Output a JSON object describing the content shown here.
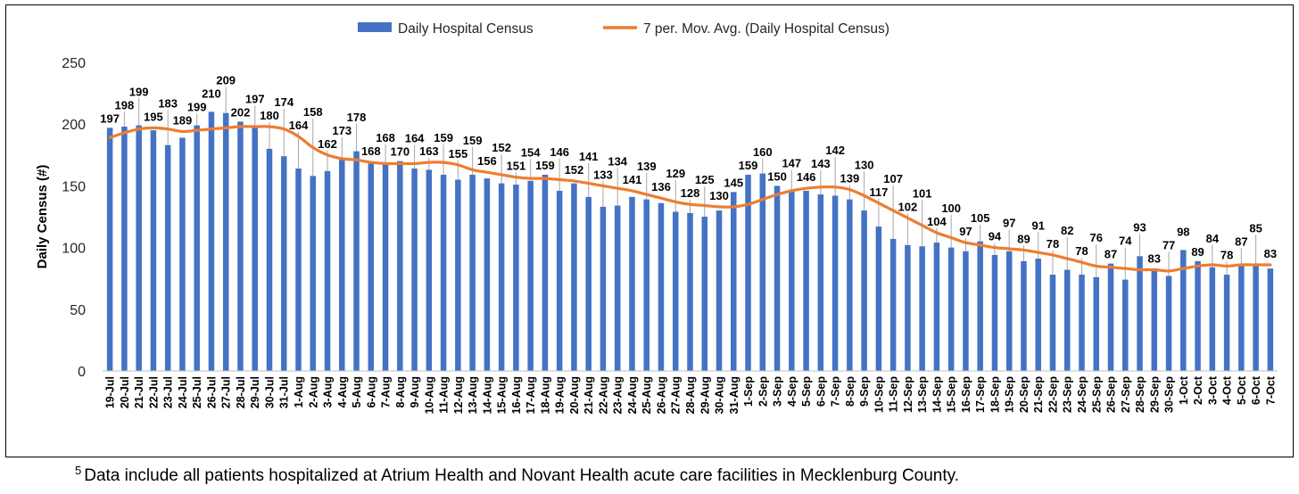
{
  "chart_data": {
    "type": "bar",
    "title": "",
    "xlabel": "",
    "ylabel": "Daily Census (#)",
    "ylim": [
      0,
      250
    ],
    "yticks": [
      0,
      50,
      100,
      150,
      200,
      250
    ],
    "grid": false,
    "legend_position": "top-center",
    "colors": {
      "bar": "#4472C4",
      "line": "#ED7D31"
    },
    "categories": [
      "19-Jul",
      "20-Jul",
      "21-Jul",
      "22-Jul",
      "23-Jul",
      "24-Jul",
      "25-Jul",
      "26-Jul",
      "27-Jul",
      "28-Jul",
      "29-Jul",
      "30-Jul",
      "31-Jul",
      "1-Aug",
      "2-Aug",
      "3-Aug",
      "4-Aug",
      "5-Aug",
      "6-Aug",
      "7-Aug",
      "8-Aug",
      "9-Aug",
      "10-Aug",
      "11-Aug",
      "12-Aug",
      "13-Aug",
      "14-Aug",
      "15-Aug",
      "16-Aug",
      "17-Aug",
      "18-Aug",
      "19-Aug",
      "20-Aug",
      "21-Aug",
      "22-Aug",
      "23-Aug",
      "24-Aug",
      "25-Aug",
      "26-Aug",
      "27-Aug",
      "28-Aug",
      "29-Aug",
      "30-Aug",
      "31-Aug",
      "1-Sep",
      "2-Sep",
      "3-Sep",
      "4-Sep",
      "5-Sep",
      "6-Sep",
      "7-Sep",
      "8-Sep",
      "9-Sep",
      "10-Sep",
      "11-Sep",
      "12-Sep",
      "13-Sep",
      "14-Sep",
      "15-Sep",
      "16-Sep",
      "17-Sep",
      "18-Sep",
      "19-Sep",
      "20-Sep",
      "21-Sep",
      "22-Sep",
      "23-Sep",
      "24-Sep",
      "25-Sep",
      "26-Sep",
      "27-Sep",
      "28-Sep",
      "29-Sep",
      "30-Sep",
      "1-Oct",
      "2-Oct",
      "3-Oct",
      "4-Oct",
      "5-Oct",
      "6-Oct",
      "7-Oct"
    ],
    "series": [
      {
        "name": "Daily Hospital Census",
        "type": "bar",
        "values": [
          197,
          198,
          199,
          195,
          183,
          189,
          199,
          210,
          209,
          202,
          197,
          180,
          174,
          164,
          158,
          162,
          173,
          178,
          168,
          168,
          170,
          164,
          163,
          159,
          155,
          159,
          156,
          152,
          151,
          154,
          159,
          146,
          152,
          141,
          133,
          134,
          141,
          139,
          136,
          129,
          128,
          125,
          130,
          145,
          159,
          160,
          150,
          147,
          146,
          143,
          142,
          139,
          130,
          117,
          107,
          102,
          101,
          104,
          100,
          97,
          105,
          94,
          97,
          89,
          91,
          78,
          82,
          78,
          76,
          87,
          74,
          93,
          83,
          77,
          98,
          89,
          84,
          78,
          87,
          85,
          83
        ]
      },
      {
        "name": "7 per. Mov. Avg. (Daily Hospital Census)",
        "type": "line",
        "values": [
          189,
          193,
          196,
          197,
          196,
          194,
          195,
          196,
          197,
          198,
          198,
          198,
          196,
          190,
          181,
          175,
          172,
          171,
          169,
          168,
          168,
          168,
          169,
          169,
          167,
          163,
          161,
          159,
          157,
          156,
          156,
          155,
          154,
          152,
          150,
          148,
          146,
          143,
          140,
          137,
          135,
          134,
          133,
          133,
          135,
          139,
          143,
          146,
          148,
          149,
          149,
          147,
          142,
          136,
          130,
          124,
          118,
          112,
          108,
          104,
          102,
          100,
          99,
          98,
          96,
          94,
          91,
          88,
          85,
          84,
          83,
          82,
          82,
          81,
          83,
          85,
          86,
          85,
          86,
          86,
          86
        ]
      }
    ]
  },
  "footnote": {
    "marker": "5",
    "text": "Data include all patients hospitalized at Atrium Health and Novant Health acute care facilities in Mecklenburg County."
  }
}
